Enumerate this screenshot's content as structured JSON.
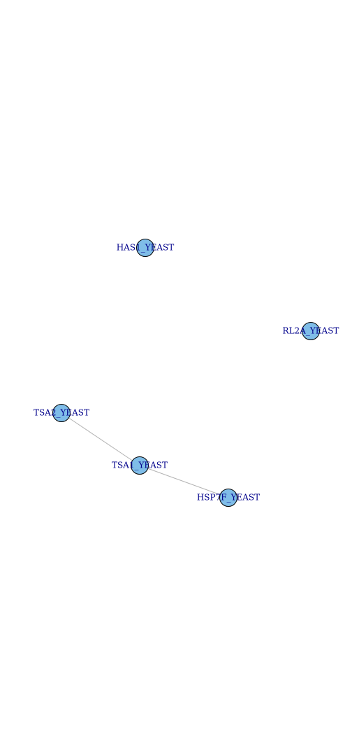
{
  "network": {
    "node_color": "#7fbde8",
    "label_color": "#00008b",
    "edge_color": "#b3b3b3",
    "nodes": [
      {
        "id": "HAS1_YEAST",
        "label": "HAS1_YEAST"
      },
      {
        "id": "RL2A_YEAST",
        "label": "RL2A_YEAST"
      },
      {
        "id": "TSA2_YEAST",
        "label": "TSA2_YEAST"
      },
      {
        "id": "TSA1_YEAST",
        "label": "TSA1_YEAST"
      },
      {
        "id": "HSP7F_YEAST",
        "label": "HSP7F_YEAST"
      }
    ],
    "edges": [
      {
        "source": "TSA2_YEAST",
        "target": "TSA1_YEAST"
      },
      {
        "source": "TSA1_YEAST",
        "target": "HSP7F_YEAST"
      }
    ]
  }
}
